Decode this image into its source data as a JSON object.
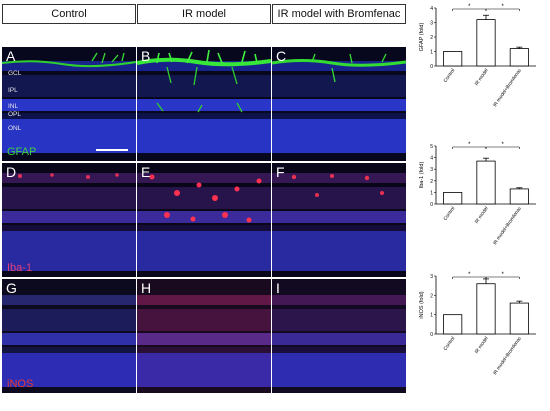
{
  "columns": [
    {
      "label": "Control"
    },
    {
      "label": "IR model"
    },
    {
      "label": "IR model with Bromfenac"
    }
  ],
  "rows": [
    {
      "marker": "GFAP",
      "marker_color": "#3fd23f",
      "panels": [
        "A",
        "B",
        "C"
      ]
    },
    {
      "marker": "Iba-1",
      "marker_color": "#e0407a",
      "panels": [
        "D",
        "E",
        "F"
      ]
    },
    {
      "marker": "iNOS",
      "marker_color": "#e03a3a",
      "panels": [
        "G",
        "H",
        "I"
      ]
    }
  ],
  "layer_labels": [
    "GCL",
    "IPL",
    "INL",
    "OPL",
    "ONL"
  ],
  "chart_data": [
    {
      "type": "bar",
      "categories": [
        "Control",
        "IR model",
        "IR model+Bromfenac"
      ],
      "values": [
        1.0,
        3.2,
        1.2
      ],
      "errors": [
        0,
        0.3,
        0.1
      ],
      "ylabel": "GFAP (fold)",
      "ylim": [
        0,
        4
      ],
      "yticks": [
        "0",
        "1",
        "2",
        "3",
        "4"
      ],
      "significance": [
        "*",
        "*"
      ]
    },
    {
      "type": "bar",
      "categories": [
        "Control",
        "IR model",
        "IR model+Bromfenac"
      ],
      "values": [
        1.0,
        3.7,
        1.3
      ],
      "errors": [
        0,
        0.25,
        0.1
      ],
      "ylabel": "Iba-1 (fold)",
      "ylim": [
        0,
        5
      ],
      "yticks": [
        "0",
        "1",
        "2",
        "3",
        "4",
        "5"
      ],
      "significance": [
        "*",
        "*"
      ]
    },
    {
      "type": "bar",
      "categories": [
        "Control",
        "IR model",
        "IR model+Bromfenac"
      ],
      "values": [
        1.0,
        2.6,
        1.6
      ],
      "errors": [
        0,
        0.25,
        0.1
      ],
      "ylabel": "iNOS (fold)",
      "ylim": [
        0,
        3
      ],
      "yticks": [
        "0",
        "1",
        "2",
        "3"
      ],
      "significance": [
        "*",
        "*"
      ]
    }
  ]
}
